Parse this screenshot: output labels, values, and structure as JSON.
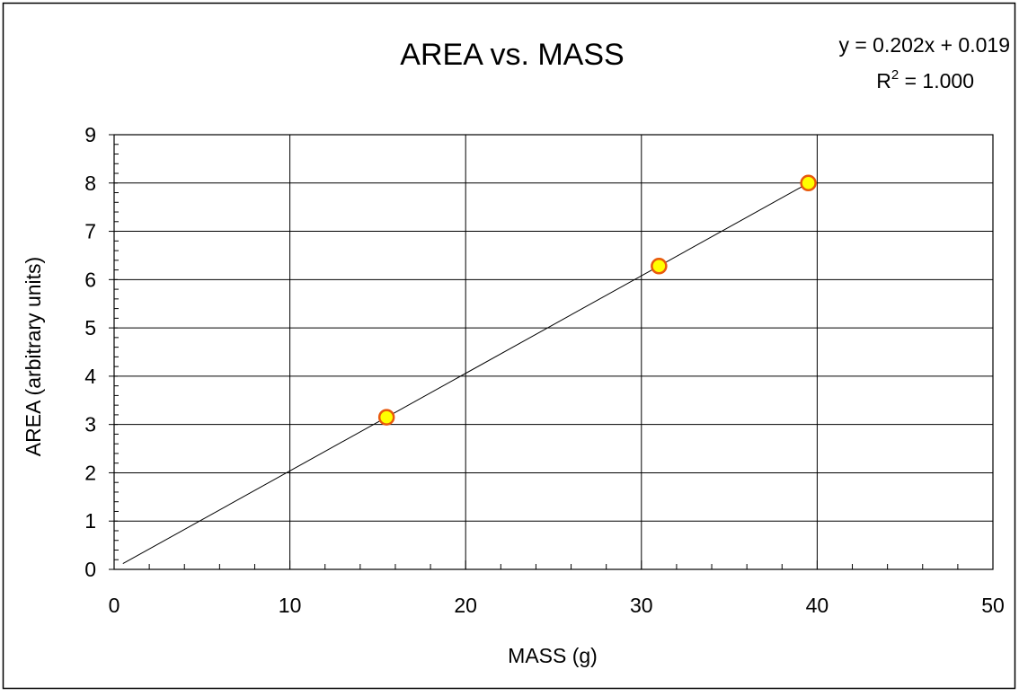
{
  "chart_data": {
    "type": "scatter",
    "title": "AREA vs. MASS",
    "xlabel": "MASS (g)",
    "ylabel": "AREA (arbitrary units)",
    "xlim": [
      0,
      50
    ],
    "ylim": [
      0,
      9
    ],
    "x_ticks": [
      0,
      10,
      20,
      30,
      40,
      50
    ],
    "y_ticks": [
      0,
      1,
      2,
      3,
      4,
      5,
      6,
      7,
      8,
      9
    ],
    "x_minor_step": 2,
    "y_minor_step": 0.2,
    "grid": true,
    "legend": "none",
    "points": [
      {
        "x": 15.5,
        "y": 3.15
      },
      {
        "x": 31.0,
        "y": 6.28
      },
      {
        "x": 39.5,
        "y": 8.0
      }
    ],
    "trendline": {
      "type": "linear",
      "slope": 0.202,
      "intercept": 0.019,
      "x_range": [
        0.5,
        39.5
      ],
      "equation_label": "y = 0.202x + 0.019",
      "r2_prefix": "R",
      "r2_sup": "2",
      "r2_value": " = 1.000"
    },
    "colors": {
      "marker_fill": "#ffff00",
      "marker_stroke": "#e8590c",
      "trendline": "#000000",
      "grid": "#000000",
      "frame": "#000000"
    }
  }
}
